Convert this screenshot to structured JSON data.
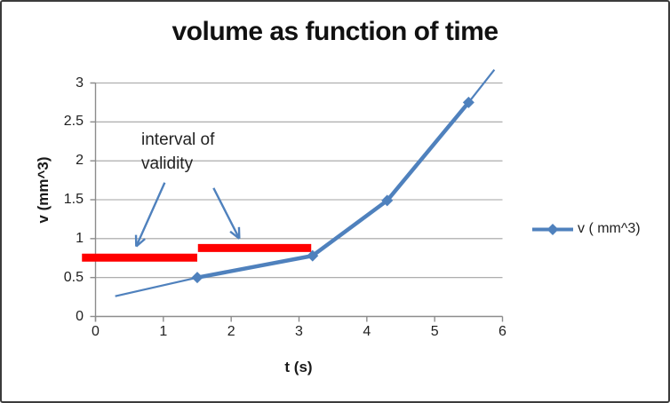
{
  "chart_data": {
    "type": "line",
    "title": "volume as function of time",
    "xlabel": "t (s)",
    "ylabel": "v (mm^3)",
    "xlim": [
      0,
      6
    ],
    "ylim": [
      0,
      3
    ],
    "x_ticks": [
      0,
      1,
      2,
      3,
      4,
      5,
      6
    ],
    "y_ticks": [
      0,
      0.5,
      1,
      1.5,
      2,
      2.5,
      3
    ],
    "grid": "horizontal-major",
    "legend": {
      "position": "right",
      "label": "v ( mm^3)"
    },
    "series": [
      {
        "name": "v ( mm^3)",
        "marker": "diamond",
        "points": [
          {
            "t": 1.5,
            "v": 0.5
          },
          {
            "t": 3.2,
            "v": 0.78
          },
          {
            "t": 4.3,
            "v": 1.49
          },
          {
            "t": 5.5,
            "v": 2.75
          }
        ]
      }
    ],
    "trendline_segments": [
      {
        "from": {
          "t": 0.29,
          "v": 0.26
        },
        "to": {
          "t": 1.5,
          "v": 0.5
        }
      },
      {
        "from": {
          "t": 5.5,
          "v": 2.75
        },
        "to": {
          "t": 5.88,
          "v": 3.17
        }
      }
    ],
    "validity_bars": [
      {
        "t_start": -0.2,
        "t_end": 1.5,
        "v": 0.755
      },
      {
        "t_start": 1.51,
        "t_end": 3.18,
        "v": 0.88
      }
    ],
    "annotation": {
      "lines": [
        "interval of",
        "validity"
      ],
      "arrows": [
        {
          "from": {
            "t": 1.02,
            "v": 1.72
          },
          "to": {
            "t": 0.6,
            "v": 0.9
          }
        },
        {
          "from": {
            "t": 1.74,
            "v": 1.65
          },
          "to": {
            "t": 2.12,
            "v": 1.0
          }
        }
      ]
    }
  },
  "colors": {
    "series_blue": "#4F81BD",
    "validity_red": "#FF0000",
    "gridline": "#A3A3A3",
    "axis": "#8C8C8C",
    "text": "#1F1F1F",
    "frame_border": "#3B3B3B"
  }
}
